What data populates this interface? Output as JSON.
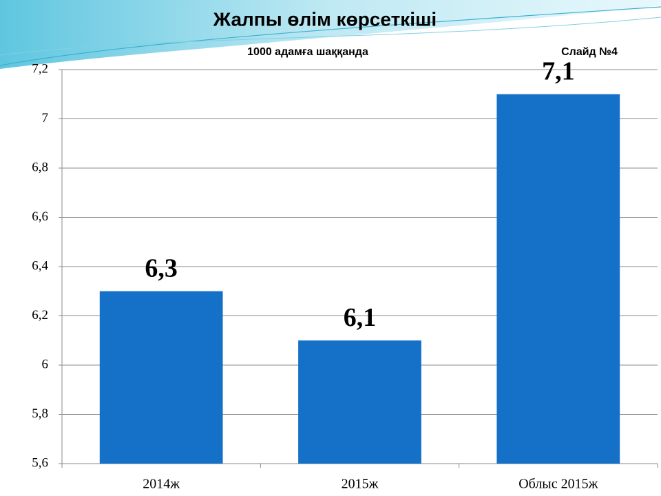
{
  "chart_data": {
    "type": "bar",
    "title": "Жалпы өлім көрсеткіші",
    "subtitle": "1000 адамға шаққанда",
    "annotation": "Слайд №4",
    "categories": [
      "2014ж",
      "2015ж",
      "Облыс 2015ж"
    ],
    "values": [
      6.3,
      6.1,
      7.1
    ],
    "value_labels": [
      "6,3",
      "6,1",
      "7,1"
    ],
    "color": "#1570c8",
    "ylim": [
      5.6,
      7.2
    ],
    "yticks": [
      {
        "value": 5.6,
        "label": "5,6"
      },
      {
        "value": 5.8,
        "label": "5,8"
      },
      6,
      {
        "value": 6.2,
        "label": "6,2"
      },
      {
        "value": 6.4,
        "label": "6,4"
      },
      {
        "value": 6.6,
        "label": "6,6"
      },
      {
        "value": 6.8,
        "label": "6,8"
      },
      7,
      {
        "value": 7.2,
        "label": "7,2"
      }
    ],
    "grid": true
  }
}
